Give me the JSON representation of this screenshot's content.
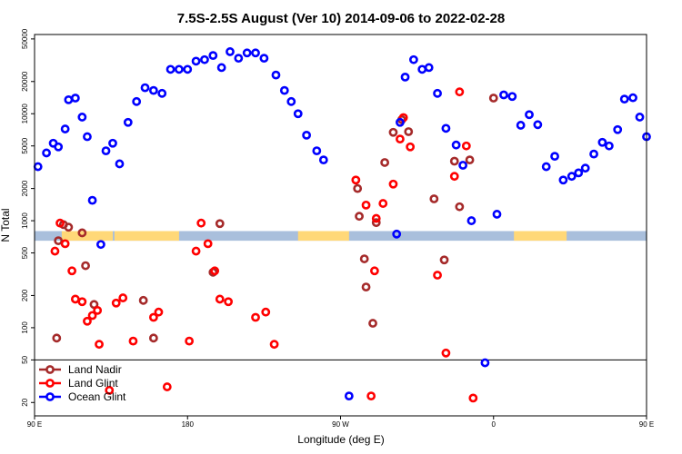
{
  "chart_data": {
    "type": "scatter",
    "title": "7.5S-2.5S August (Ver 10)   2014-09-06 to 2022-02-28",
    "xlabel": "Longitude (deg E)",
    "ylabel": "N Total",
    "y_scale": "log",
    "xlim": [
      90,
      450
    ],
    "ylim": [
      15,
      55000
    ],
    "x_ticks": [
      {
        "value": 90,
        "label": "90 E"
      },
      {
        "value": 180,
        "label": "180"
      },
      {
        "value": 270,
        "label": "90 W"
      },
      {
        "value": 360,
        "label": "0"
      },
      {
        "value": 450,
        "label": "90 E"
      },
      {
        "value": 540,
        "label": "180"
      }
    ],
    "y_ticks": [
      20,
      50,
      100,
      200,
      500,
      1000,
      2000,
      5000,
      10000,
      20000,
      50000
    ],
    "legend_position": "bottom-left",
    "band": {
      "color": "#a9bfdc",
      "y_range": [
        650,
        800
      ],
      "land_color": "#ffd878"
    },
    "series": [
      {
        "name": "Land Nadir",
        "color": "#a52a2a",
        "points": [
          [
            103,
            80
          ],
          [
            104,
            650
          ],
          [
            107,
            920
          ],
          [
            110,
            870
          ],
          [
            118,
            770
          ],
          [
            120,
            380
          ],
          [
            125,
            165
          ],
          [
            154,
            180
          ],
          [
            160,
            80
          ],
          [
            195,
            330
          ],
          [
            199,
            940
          ],
          [
            280,
            2000
          ],
          [
            281,
            1100
          ],
          [
            284,
            440
          ],
          [
            285,
            240
          ],
          [
            289,
            110
          ],
          [
            291,
            960
          ],
          [
            296,
            3500
          ],
          [
            301,
            6700
          ],
          [
            306,
            8800
          ],
          [
            310,
            6800
          ],
          [
            325,
            1600
          ],
          [
            331,
            430
          ],
          [
            337,
            3600
          ],
          [
            340,
            1350
          ],
          [
            346,
            3700
          ],
          [
            360,
            14000
          ]
        ]
      },
      {
        "name": "Land Glint",
        "color": "#ff0000",
        "points": [
          [
            102,
            520
          ],
          [
            105,
            950
          ],
          [
            108,
            610
          ],
          [
            112,
            340
          ],
          [
            114,
            185
          ],
          [
            118,
            175
          ],
          [
            121,
            115
          ],
          [
            124,
            130
          ],
          [
            127,
            145
          ],
          [
            128,
            70
          ],
          [
            134,
            26
          ],
          [
            138,
            170
          ],
          [
            142,
            190
          ],
          [
            148,
            75
          ],
          [
            160,
            125
          ],
          [
            163,
            140
          ],
          [
            168,
            28
          ],
          [
            181,
            75
          ],
          [
            185,
            520
          ],
          [
            188,
            950
          ],
          [
            192,
            610
          ],
          [
            196,
            340
          ],
          [
            199,
            185
          ],
          [
            204,
            175
          ],
          [
            220,
            125
          ],
          [
            226,
            140
          ],
          [
            231,
            70
          ],
          [
            279,
            2400
          ],
          [
            285,
            1400
          ],
          [
            288,
            23
          ],
          [
            290,
            340
          ],
          [
            291,
            1050
          ],
          [
            295,
            1450
          ],
          [
            301,
            2200
          ],
          [
            305,
            5800
          ],
          [
            307,
            9200
          ],
          [
            311,
            4900
          ],
          [
            327,
            310
          ],
          [
            332,
            58
          ],
          [
            337,
            2600
          ],
          [
            340,
            16000
          ],
          [
            344,
            5000
          ],
          [
            348,
            22
          ]
        ]
      },
      {
        "name": "Ocean Glint",
        "color": "#0000ff",
        "points": [
          [
            92,
            3200
          ],
          [
            97,
            4300
          ],
          [
            101,
            5300
          ],
          [
            104,
            4900
          ],
          [
            108,
            7200
          ],
          [
            110,
            13500
          ],
          [
            114,
            14000
          ],
          [
            118,
            9300
          ],
          [
            121,
            6100
          ],
          [
            124,
            1550
          ],
          [
            129,
            600
          ],
          [
            132,
            4500
          ],
          [
            136,
            5300
          ],
          [
            140,
            3400
          ],
          [
            145,
            8300
          ],
          [
            150,
            13000
          ],
          [
            155,
            17500
          ],
          [
            160,
            16500
          ],
          [
            165,
            15500
          ],
          [
            170,
            26000
          ],
          [
            175,
            26000
          ],
          [
            180,
            26000
          ],
          [
            185,
            31000
          ],
          [
            190,
            32000
          ],
          [
            195,
            35000
          ],
          [
            200,
            27000
          ],
          [
            205,
            38000
          ],
          [
            210,
            33000
          ],
          [
            215,
            37000
          ],
          [
            220,
            37000
          ],
          [
            225,
            33000
          ],
          [
            232,
            23000
          ],
          [
            237,
            16500
          ],
          [
            241,
            13000
          ],
          [
            245,
            10000
          ],
          [
            250,
            6300
          ],
          [
            256,
            4500
          ],
          [
            260,
            3700
          ],
          [
            275,
            23
          ],
          [
            303,
            750
          ],
          [
            305,
            8300
          ],
          [
            308,
            22000
          ],
          [
            313,
            32000
          ],
          [
            318,
            26000
          ],
          [
            322,
            27000
          ],
          [
            327,
            15500
          ],
          [
            332,
            7300
          ],
          [
            338,
            5100
          ],
          [
            342,
            3300
          ],
          [
            347,
            1000
          ],
          [
            355,
            47
          ],
          [
            362,
            1150
          ],
          [
            366,
            15000
          ],
          [
            371,
            14500
          ],
          [
            376,
            7800
          ],
          [
            381,
            9800
          ],
          [
            386,
            7900
          ],
          [
            391,
            3200
          ],
          [
            396,
            4000
          ],
          [
            401,
            2400
          ],
          [
            406,
            2600
          ],
          [
            410,
            2800
          ],
          [
            414,
            3100
          ],
          [
            419,
            4200
          ],
          [
            424,
            5400
          ],
          [
            428,
            5000
          ],
          [
            433,
            7100
          ],
          [
            437,
            13700
          ],
          [
            442,
            14100
          ],
          [
            446,
            9300
          ],
          [
            450,
            6100
          ]
        ]
      }
    ],
    "land_band_segments": [
      [
        106,
        136
      ],
      [
        137,
        175
      ],
      [
        245,
        275
      ],
      [
        372,
        403
      ],
      [
        488,
        521
      ]
    ]
  }
}
